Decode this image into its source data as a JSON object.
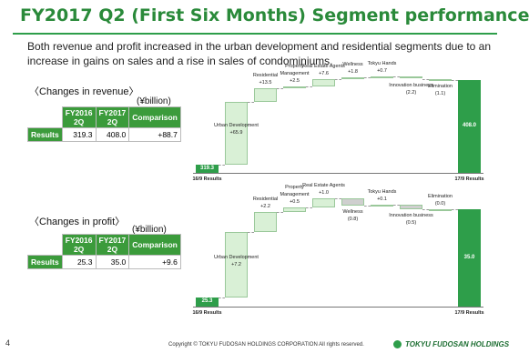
{
  "header": {
    "title": "FY2017 Q2 (First Six Months) Segment performance",
    "subtitle": "Both revenue and profit increased in the urban development and residential segments due to an increase in gains on sales and a rise in sales of condominiums."
  },
  "revenue_table": {
    "heading": "〈Changes in revenue〉",
    "unit": "(¥billion)",
    "columns": [
      "FY2016 2Q",
      "FY2017 2Q",
      "Comparison"
    ],
    "rows": [
      [
        "Results",
        "319.3",
        "408.0",
        "+88.7"
      ]
    ]
  },
  "profit_table": {
    "heading": "〈Changes in profit〉",
    "unit": "(¥billion)",
    "columns": [
      "FY2016 2Q",
      "FY2017 2Q",
      "Comparison"
    ],
    "rows": [
      [
        "Results",
        "25.3",
        "35.0",
        "+9.6"
      ]
    ]
  },
  "chart_data": [
    {
      "type": "waterfall",
      "categories": [
        "16/9 Results",
        "Urban Development",
        "Residential",
        "Property Management",
        "Real Estate Agents",
        "Wellness",
        "Tokyu Hands",
        "Innovation business",
        "Elimination",
        "17/9 Results"
      ],
      "values": [
        319.3,
        65.9,
        13.5,
        2.5,
        7.6,
        1.8,
        0.7,
        -2.2,
        -1.1,
        408.0
      ],
      "value_labels": [
        "319.3",
        "+65.9",
        "+13.5",
        "+2.5",
        "+7.6",
        "+1.8",
        "+0.7",
        "(2.2)",
        "(1.1)",
        "408.0"
      ],
      "ylim": [
        311,
        420
      ],
      "total_color": "#2e9e4a",
      "increase_color": "#d9f0d6",
      "decrease_color": "#cfcfcf"
    },
    {
      "type": "waterfall",
      "categories": [
        "16/9 Results",
        "Urban Development",
        "Residential",
        "Property Management",
        "Real Estate Agents",
        "Wellness",
        "Tokyu Hands",
        "Innovation business",
        "Elimination",
        "17/9 Results"
      ],
      "values": [
        25.3,
        7.2,
        2.2,
        0.5,
        1.0,
        -0.8,
        0.1,
        -0.5,
        0.0,
        35.0
      ],
      "value_labels": [
        "25.3",
        "+7.2",
        "+2.2",
        "+0.5",
        "+1.0",
        "(0.8)",
        "+0.1",
        "(0.5)",
        "(0.0)",
        "35.0"
      ],
      "ylim": [
        24.3,
        37.5
      ],
      "total_color": "#2e9e4a",
      "increase_color": "#d9f0d6",
      "decrease_color": "#cfcfcf"
    }
  ],
  "footer": {
    "page": "4",
    "copyright": "Copyright © TOKYU FUDOSAN HOLDINGS CORPORATION All rights reserved.",
    "logo": "TOKYU FUDOSAN HOLDINGS"
  }
}
